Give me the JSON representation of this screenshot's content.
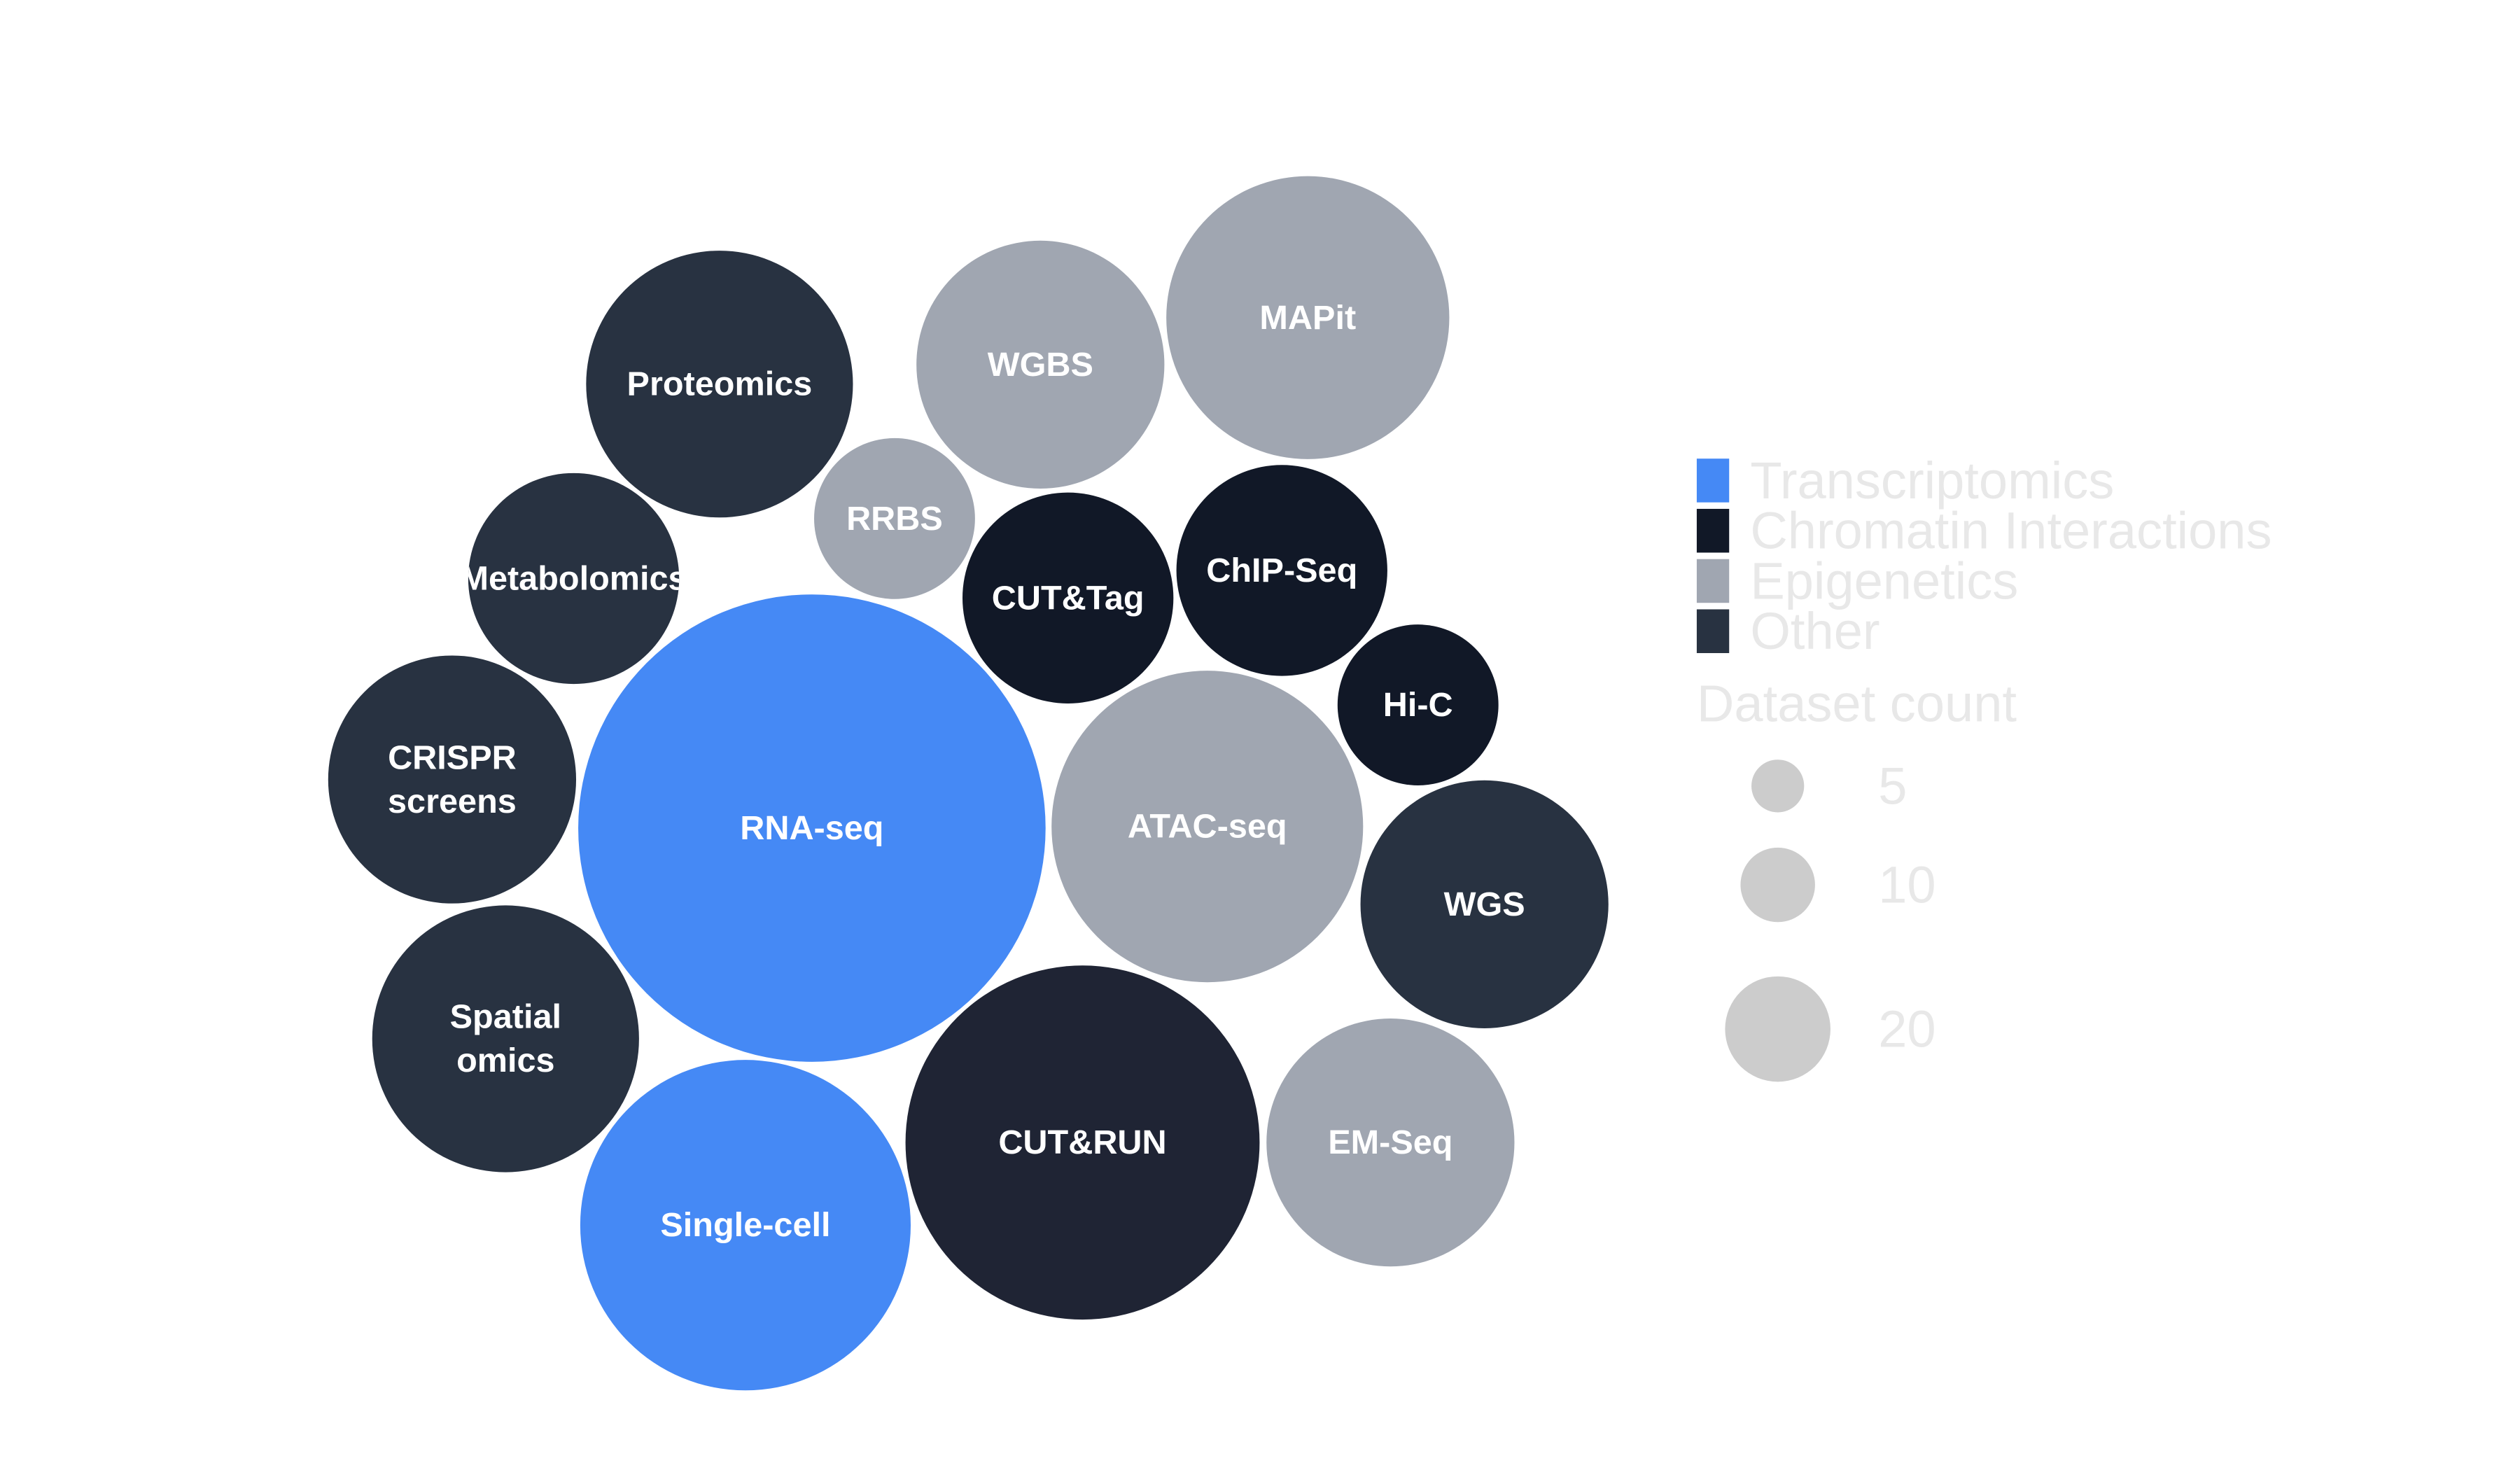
{
  "chart_data": {
    "type": "bubble",
    "title": "",
    "colors": {
      "Transcriptomics": "#4589f5",
      "Chromatin Interactions": "#111827",
      "Epigenetics": "#a0a6b1",
      "Other": "#283241",
      "cut_and_run": "#1f2434",
      "legend_text": "#e8e8e8",
      "size_legend_fill": "#cccccc"
    },
    "bubbles": [
      {
        "label": "RNA-seq",
        "category": "Transcriptomics",
        "value": 27
      },
      {
        "label": "Single-cell",
        "category": "Transcriptomics",
        "value": 13.5
      },
      {
        "label": "CUT&RUN",
        "category": "Chromatin Interactions",
        "value": 15.5
      },
      {
        "label": "CUT&Tag",
        "category": "Chromatin Interactions",
        "value": 5.5
      },
      {
        "label": "ChIP-Seq",
        "category": "Chromatin Interactions",
        "value": 5.5
      },
      {
        "label": "Hi-C",
        "category": "Chromatin Interactions",
        "value": 3.2
      },
      {
        "label": "WGBS",
        "category": "Epigenetics",
        "value": 7.6
      },
      {
        "label": "MAPit",
        "category": "Epigenetics",
        "value": 9.9
      },
      {
        "label": "RRBS",
        "category": "Epigenetics",
        "value": 3.2
      },
      {
        "label": "ATAC-seq",
        "category": "Epigenetics",
        "value": 12
      },
      {
        "label": "EM-Seq",
        "category": "Epigenetics",
        "value": 7.6
      },
      {
        "label": "Proteomics",
        "category": "Other",
        "value": 8.8
      },
      {
        "label": "Metabolomics",
        "category": "Other",
        "value": 5.5
      },
      {
        "label": "CRISPR screens",
        "label_lines": [
          "CRISPR",
          "screens"
        ],
        "category": "Other",
        "value": 7.6
      },
      {
        "label": "Spatial omics",
        "label_lines": [
          "Spatial",
          "omics"
        ],
        "category": "Other",
        "value": 8.8
      },
      {
        "label": "WGS",
        "category": "Other",
        "value": 7.6
      }
    ],
    "legend": {
      "categories": [
        "Transcriptomics",
        "Chromatin Interactions",
        "Epigenetics",
        "Other"
      ],
      "size_title": "Dataset count",
      "size_values": [
        5,
        10,
        20
      ],
      "size_labels": [
        "5",
        "10",
        "20"
      ],
      "position": "right"
    }
  }
}
